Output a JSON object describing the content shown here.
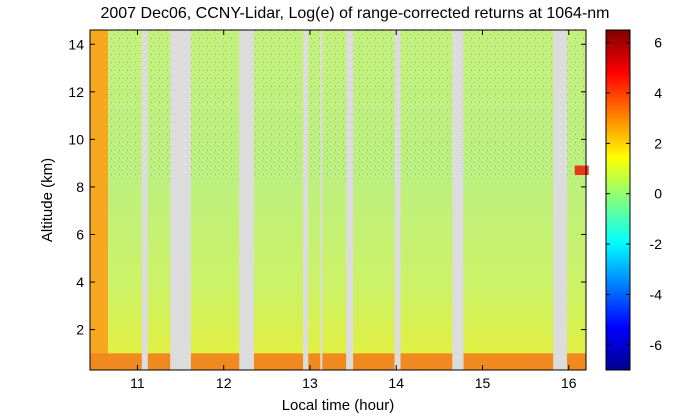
{
  "chart_data": {
    "type": "heatmap",
    "title": "2007 Dec06, CCNY-Lidar, Log(e) of range-corrected returns at 1064-nm",
    "xlabel": "Local time (hour)",
    "ylabel": "Altitude (km)",
    "xlim": [
      10.45,
      16.2
    ],
    "ylim": [
      0.3,
      14.6
    ],
    "x_ticks": [
      11,
      12,
      13,
      14,
      15,
      16
    ],
    "y_ticks": [
      2,
      4,
      6,
      8,
      10,
      12,
      14
    ],
    "colorbar": {
      "range": [
        -7,
        6.5
      ],
      "ticks": [
        -6,
        -4,
        -2,
        0,
        2,
        4,
        6
      ],
      "colormap": "jet"
    },
    "no_data_gaps_hours": [
      [
        11.05,
        11.12
      ],
      [
        11.38,
        11.62
      ],
      [
        12.18,
        12.35
      ],
      [
        12.92,
        12.98
      ],
      [
        13.12,
        13.14
      ],
      [
        13.42,
        13.5
      ],
      [
        13.98,
        14.05
      ],
      [
        14.65,
        14.78
      ],
      [
        15.82,
        15.98
      ]
    ],
    "features": [
      {
        "label": "near-surface layer",
        "altitude_km": [
          0.3,
          1.0
        ],
        "log_value": 2.5
      },
      {
        "label": "cloud",
        "time_hour": 16.15,
        "altitude_km": [
          8.5,
          8.9
        ],
        "log_value": 4.5
      }
    ]
  }
}
